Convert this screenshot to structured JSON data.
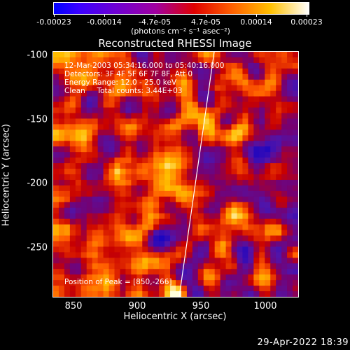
{
  "colorbar": {
    "labels": [
      "-0.00023",
      "-0.00014",
      "-4.7e-05",
      "4.7e-05",
      "0.00014",
      "0.00023"
    ],
    "units": "(photons cm⁻² s⁻¹ asec⁻²)"
  },
  "title": "Reconstructed RHESSI Image",
  "info": {
    "time": "12-Mar-2003 05:34:16.000 to 05:40:16.000",
    "detectors": "Detectors: 3F 4F 5F 6F 7F 8F, Att 0",
    "energy": "Energy Range: 12.0 - 25.0 keV",
    "clean": "Clean     Total counts: 3.44E+03"
  },
  "peak": "Position of Peak = [850,-266]",
  "axes": {
    "xlabel": "Heliocentric X (arcsec)",
    "ylabel": "Heliocentric Y (arcsec)",
    "xticks": [
      "850",
      "900",
      "950",
      "1000"
    ],
    "yticks": [
      "-100",
      "-150",
      "-200",
      "-250"
    ]
  },
  "timestamp": "29-Apr-2022 18:39"
}
